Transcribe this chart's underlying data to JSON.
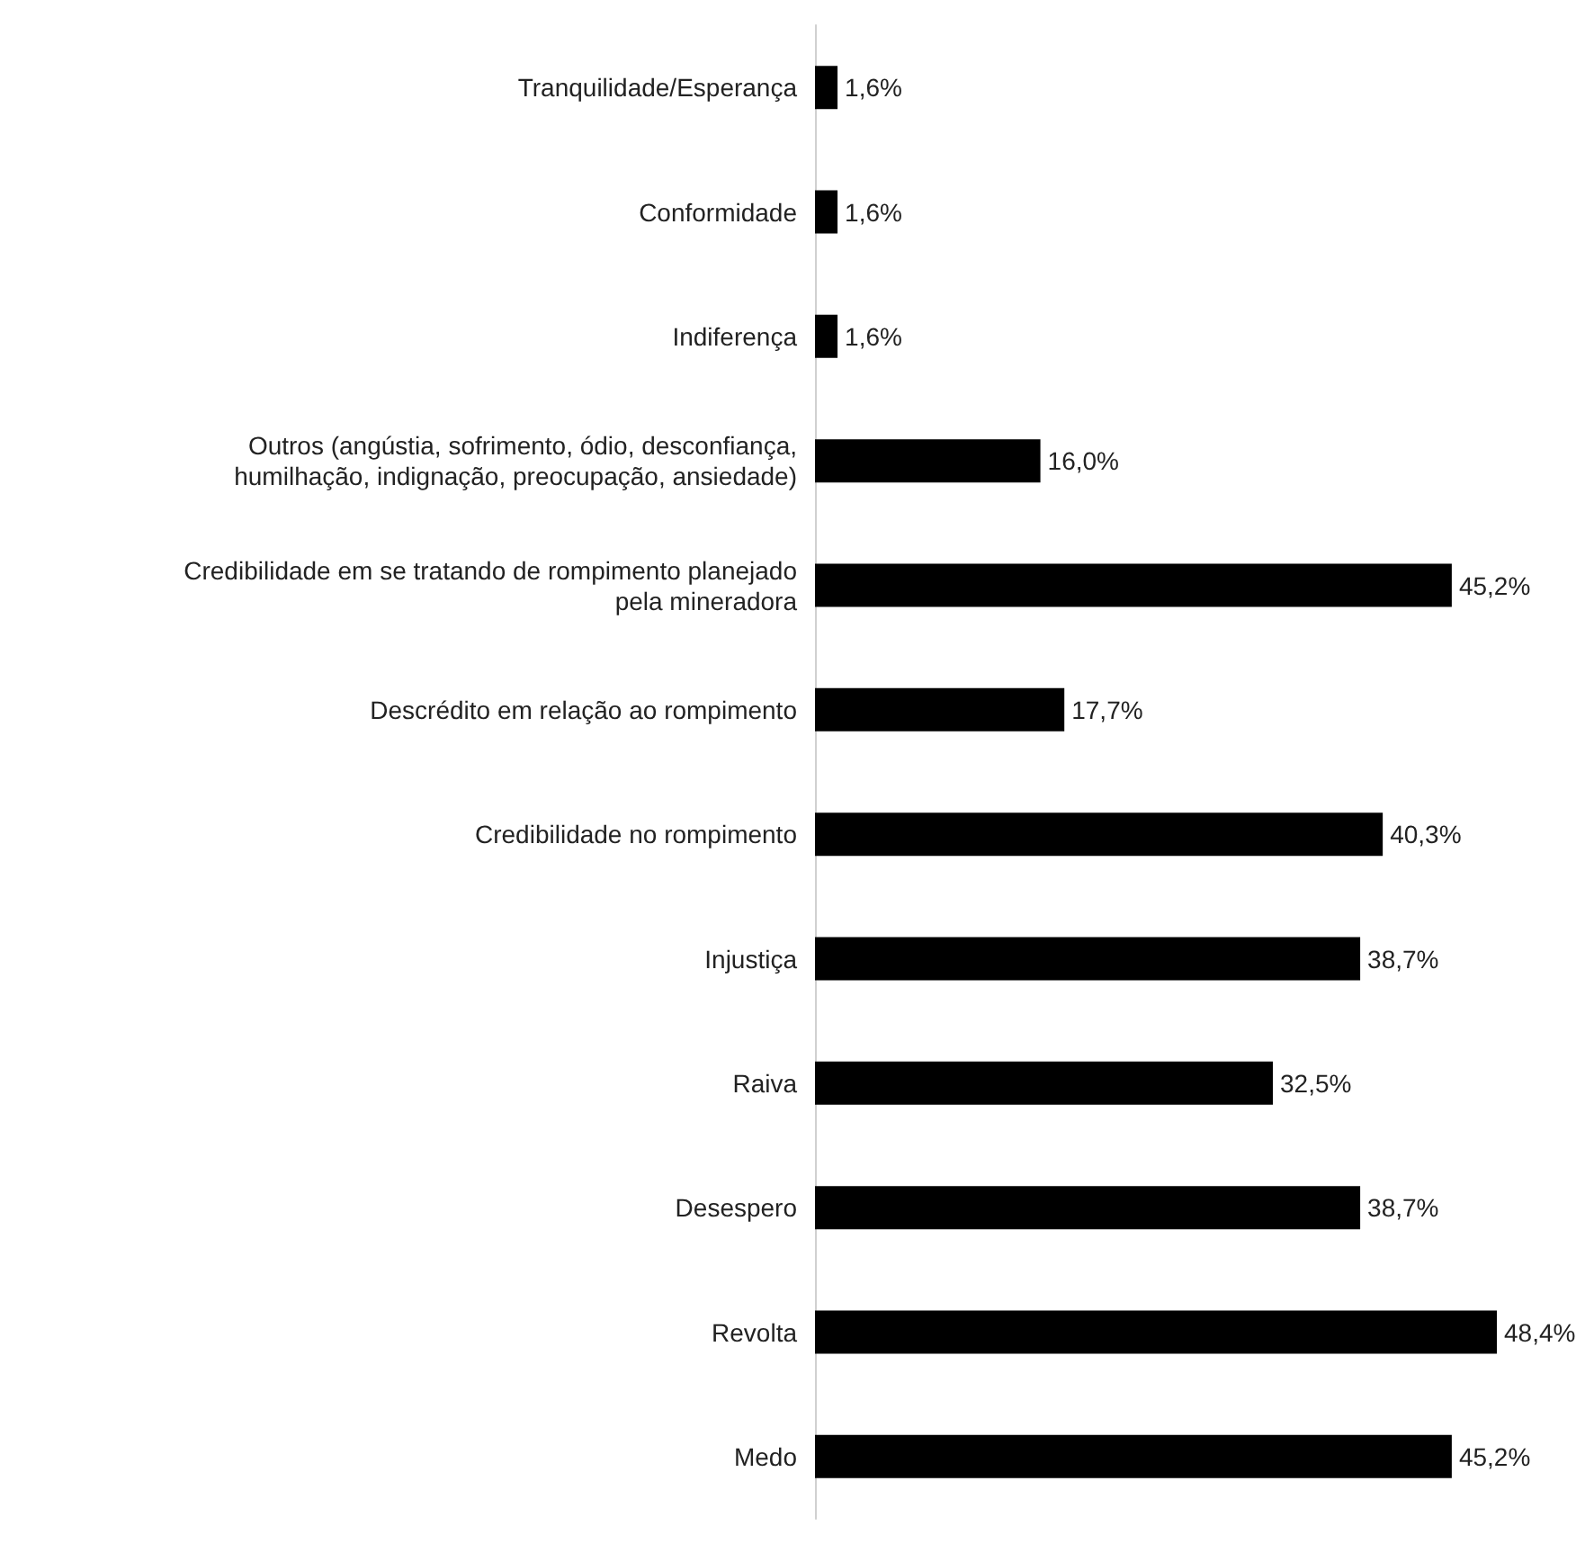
{
  "chart_data": {
    "type": "bar",
    "orientation": "horizontal",
    "categories": [
      "Tranquilidade/Esperança",
      "Conformidade",
      "Indiferença",
      "Outros (angústia, sofrimento, ódio, desconfiança,\nhumilhação, indignação, preocupação, ansiedade)",
      "Credibilidade em se tratando de rompimento planejado\npela mineradora",
      "Descrédito em relação ao rompimento",
      "Credibilidade no rompimento",
      "Injustiça",
      "Raiva",
      "Desespero",
      "Revolta",
      "Medo"
    ],
    "values": [
      1.6,
      1.6,
      1.6,
      16.0,
      45.2,
      17.7,
      40.3,
      38.7,
      32.5,
      38.7,
      48.4,
      45.2
    ],
    "value_labels": [
      "1,6%",
      "1,6%",
      "1,6%",
      "16,0%",
      "45,2%",
      "17,7%",
      "40,3%",
      "38,7%",
      "32,5%",
      "38,7%",
      "48,4%",
      "45,2%"
    ],
    "color": "#000000",
    "tick_labels": "y",
    "grid": false
  }
}
